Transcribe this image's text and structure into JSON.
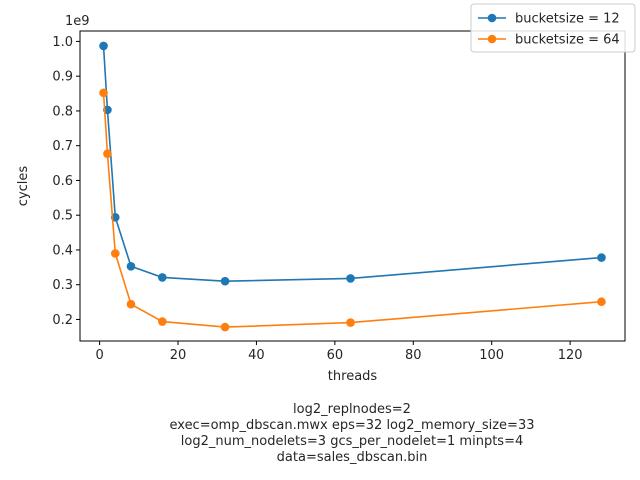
{
  "chart_data": {
    "type": "line",
    "xlabel": "threads",
    "ylabel": "cycles",
    "y_scale_label": "1e9",
    "xlim": [
      -5,
      134
    ],
    "ylim": [
      138000000.0,
      1030000000.0
    ],
    "x_ticks": [
      0,
      20,
      40,
      60,
      80,
      100,
      120
    ],
    "y_ticks": [
      200000000.0,
      300000000.0,
      400000000.0,
      500000000.0,
      600000000.0,
      700000000.0,
      800000000.0,
      900000000.0,
      1000000000.0
    ],
    "y_tick_labels": [
      "0.2",
      "0.3",
      "0.4",
      "0.5",
      "0.6",
      "0.7",
      "0.8",
      "0.9",
      "1.0"
    ],
    "grid": false,
    "legend_position": "top-right",
    "series": [
      {
        "name": "bucketsize = 12",
        "color": "#1f77b4",
        "x": [
          1,
          2,
          4,
          8,
          16,
          32,
          64,
          128
        ],
        "values": [
          987000000,
          803000000,
          494000000,
          353000000,
          321000000,
          310000000,
          318000000,
          378000000
        ]
      },
      {
        "name": "bucketsize = 64",
        "color": "#ff7f0e",
        "x": [
          1,
          2,
          4,
          8,
          16,
          32,
          64,
          128
        ],
        "values": [
          852000000,
          677000000,
          390000000,
          244000000,
          194000000,
          178000000,
          191000000,
          251000000
        ]
      }
    ],
    "caption": [
      "log2_replnodes=2",
      "exec=omp_dbscan.mwx   eps=32   log2_memory_size=33",
      "log2_num_nodelets=3   gcs_per_nodelet=1   minpts=4",
      "data=sales_dbscan.bin"
    ]
  }
}
